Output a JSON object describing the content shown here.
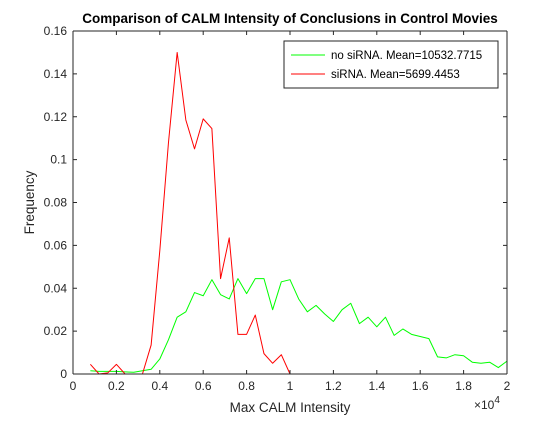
{
  "chart_data": {
    "type": "line",
    "title": "Comparison of CALM Intensity of Conclusions in Control Movies",
    "xlabel": "Max CALM Intensity",
    "ylabel": "Frequency",
    "xlim": [
      0,
      20000
    ],
    "ylim": [
      0,
      0.16
    ],
    "x_exponent_label": "×10",
    "x_exponent_power": "4",
    "xticks": [
      0,
      2000,
      4000,
      6000,
      8000,
      10000,
      12000,
      14000,
      16000,
      18000,
      20000
    ],
    "xtick_labels": [
      "0",
      "0.2",
      "0.4",
      "0.6",
      "0.8",
      "1",
      "1.2",
      "1.4",
      "1.6",
      "1.8",
      "2"
    ],
    "yticks": [
      0,
      0.02,
      0.04,
      0.06,
      0.08,
      0.1,
      0.12,
      0.14,
      0.16
    ],
    "ytick_labels": [
      "0",
      "0.02",
      "0.04",
      "0.06",
      "0.08",
      "0.1",
      "0.12",
      "0.14",
      "0.16"
    ],
    "grid": false,
    "legend_position": "top-right",
    "series": [
      {
        "name": "no siRNA. Mean=10532.7715",
        "color": "#00ff00",
        "x": [
          800,
          1200,
          1600,
          2000,
          2400,
          2800,
          3200,
          3600,
          4000,
          4400,
          4800,
          5200,
          5600,
          6000,
          6400,
          6800,
          7200,
          7600,
          8000,
          8400,
          8800,
          9200,
          9600,
          10000,
          10400,
          10800,
          11200,
          11600,
          12000,
          12400,
          12800,
          13200,
          13600,
          14000,
          14400,
          14800,
          15200,
          15600,
          16000,
          16400,
          16800,
          17200,
          17600,
          18000,
          18400,
          18800,
          19200,
          19600,
          20000
        ],
        "y": [
          0.0015,
          0.0012,
          0.0012,
          0.0012,
          0.001,
          0.0008,
          0.0015,
          0.0022,
          0.007,
          0.016,
          0.0265,
          0.029,
          0.038,
          0.0365,
          0.044,
          0.037,
          0.035,
          0.0445,
          0.0375,
          0.0445,
          0.0445,
          0.03,
          0.043,
          0.044,
          0.035,
          0.029,
          0.032,
          0.028,
          0.0245,
          0.03,
          0.033,
          0.0235,
          0.0265,
          0.022,
          0.0265,
          0.018,
          0.021,
          0.0185,
          0.0175,
          0.0165,
          0.008,
          0.0075,
          0.009,
          0.0085,
          0.0055,
          0.005,
          0.0055,
          0.003,
          0.006
        ]
      },
      {
        "name": "siRNA. Mean=5699.4453",
        "color": "#ff0000",
        "x": [
          800,
          1200,
          1600,
          2000,
          2400,
          2800,
          3200,
          3600,
          4000,
          4400,
          4800,
          5200,
          5600,
          6000,
          6400,
          6800,
          7200,
          7600,
          8000,
          8400,
          8800,
          9200,
          9600,
          10000
        ],
        "y": [
          0.0045,
          0.0,
          0.0005,
          0.0045,
          0.0,
          0.0,
          0.0,
          0.0135,
          0.0575,
          0.108,
          0.15,
          0.1185,
          0.105,
          0.119,
          0.1145,
          0.0445,
          0.0635,
          0.0185,
          0.0185,
          0.0275,
          0.0095,
          0.005,
          0.009,
          0.0
        ]
      }
    ]
  }
}
